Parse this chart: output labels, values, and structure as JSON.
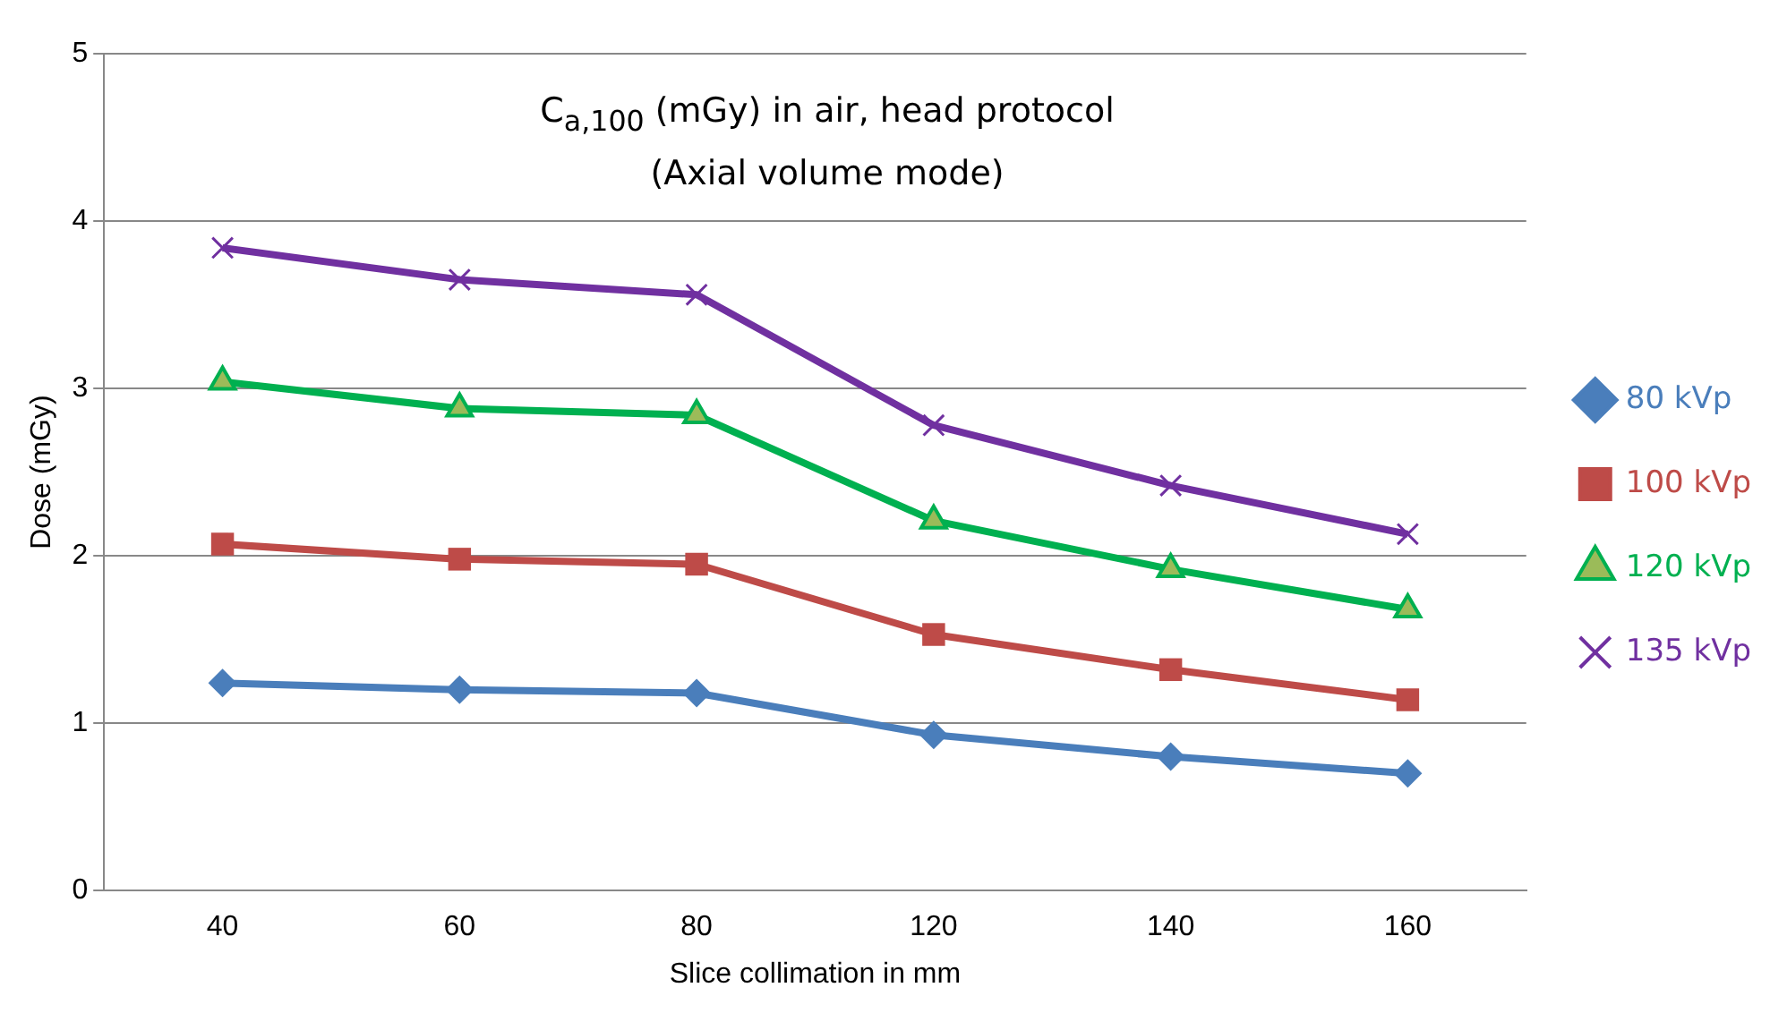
{
  "chart_data": {
    "type": "line",
    "title": "C$_{a,100}$ (mGy) in air, head protocol\n(Axial volume mode)",
    "xlabel": "Slice collimation in mm",
    "ylabel": "Dose (mGy)",
    "categories": [
      "40",
      "60",
      "80",
      "120",
      "140",
      "160"
    ],
    "series": [
      {
        "name": "80 kVp",
        "color": "#4a7ebb",
        "marker": "diamond",
        "values": [
          1.24,
          1.2,
          1.18,
          0.93,
          0.8,
          0.7
        ]
      },
      {
        "name": "100 kVp",
        "color": "#be4b48",
        "marker": "square",
        "values": [
          2.07,
          1.98,
          1.95,
          1.53,
          1.32,
          1.14
        ]
      },
      {
        "name": "120 kVp",
        "color": "#00b050",
        "marker": "triangle",
        "values": [
          3.04,
          2.88,
          2.84,
          2.21,
          1.92,
          1.68
        ]
      },
      {
        "name": "135 kVp",
        "color": "#7030a0",
        "marker": "cross",
        "values": [
          3.84,
          3.65,
          3.56,
          2.78,
          2.42,
          2.13
        ]
      }
    ],
    "ylim": [
      0,
      5
    ],
    "yticks": [
      0,
      1,
      2,
      3,
      4,
      5
    ],
    "grid": "y",
    "legend": "right",
    "line_style": "solid"
  }
}
